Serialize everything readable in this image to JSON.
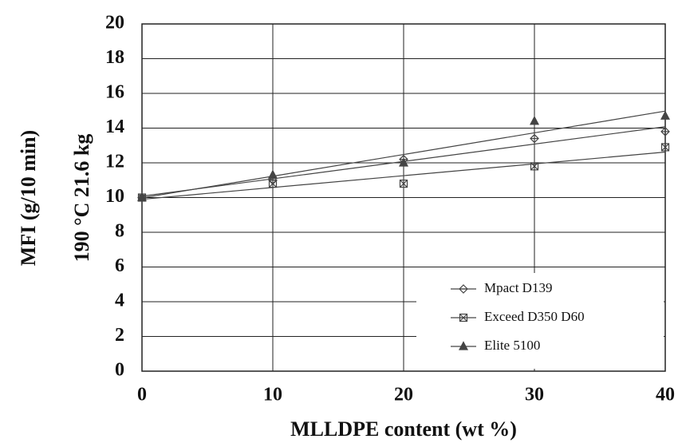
{
  "chart_data": {
    "type": "scatter",
    "y_label_lines": [
      "MFI (g/10 min)",
      "190 °C 21.6 kg"
    ],
    "x_label": "MLLDPE content (wt %)",
    "x": [
      0,
      10,
      20,
      30,
      40
    ],
    "series": [
      {
        "name": "Mpact D139",
        "color": "#444444",
        "marker": "diamond",
        "values": [
          10,
          11.0,
          12.2,
          13.4,
          13.8
        ]
      },
      {
        "name": "Exceed D350 D60",
        "color": "#444444",
        "marker": "square",
        "values": [
          10,
          10.8,
          10.8,
          11.8,
          12.9
        ]
      },
      {
        "name": "Elite 5100",
        "color": "#444444",
        "marker": "triangle",
        "values": [
          10,
          11.3,
          12.0,
          14.4,
          14.7
        ]
      }
    ],
    "trendline": "linear",
    "xlim": [
      0,
      40
    ],
    "xticks": [
      0,
      10,
      20,
      30,
      40
    ],
    "ylim": [
      0,
      20
    ],
    "yticks": [
      0,
      2,
      4,
      6,
      8,
      10,
      12,
      14,
      16,
      18,
      20
    ],
    "grid": true,
    "legend": "lower-right"
  }
}
